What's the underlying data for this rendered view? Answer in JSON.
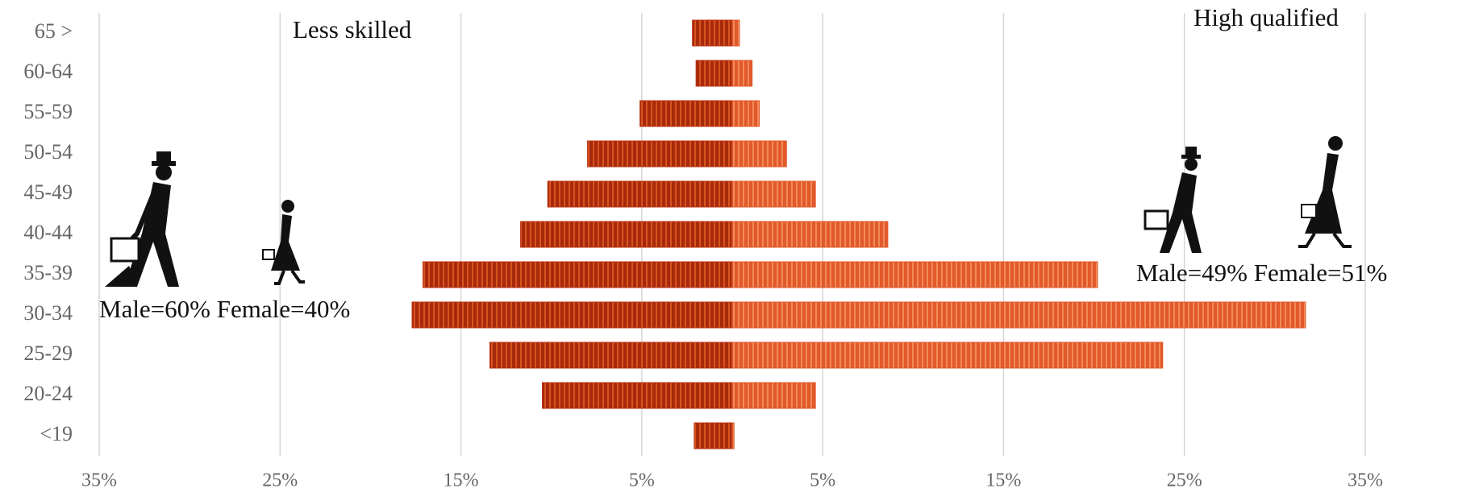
{
  "chart_data": {
    "type": "pyramid",
    "categories": [
      "65 >",
      "60-64",
      "55-59",
      "50-54",
      "45-49",
      "40-44",
      "35-39",
      "30-34",
      "25-29",
      "20-24",
      "<19"
    ],
    "series": [
      {
        "name": "Less skilled",
        "color": "#b8320f",
        "values": [
          -2.2,
          -2.0,
          -5.1,
          -8.0,
          -10.2,
          -11.7,
          -17.1,
          -17.7,
          -13.4,
          -10.5,
          -2.1
        ]
      },
      {
        "name": "High qualified",
        "color": "#e2592a",
        "values": [
          0.4,
          1.1,
          1.5,
          3.0,
          4.6,
          8.6,
          20.2,
          31.7,
          23.8,
          4.6,
          0.1
        ]
      }
    ],
    "annotations": [
      "Male=60% Female=40%",
      "Male=49% Female=51%"
    ],
    "xlim": [
      -35,
      35
    ],
    "xticks": [
      {
        "value": -35,
        "label": "35%"
      },
      {
        "value": -25,
        "label": "25%"
      },
      {
        "value": -15,
        "label": "15%"
      },
      {
        "value": -5,
        "label": "5%"
      },
      {
        "value": 5,
        "label": "5%"
      },
      {
        "value": 15,
        "label": "15%"
      },
      {
        "value": 25,
        "label": "25%"
      },
      {
        "value": 35,
        "label": "35%"
      }
    ],
    "grid": true
  }
}
